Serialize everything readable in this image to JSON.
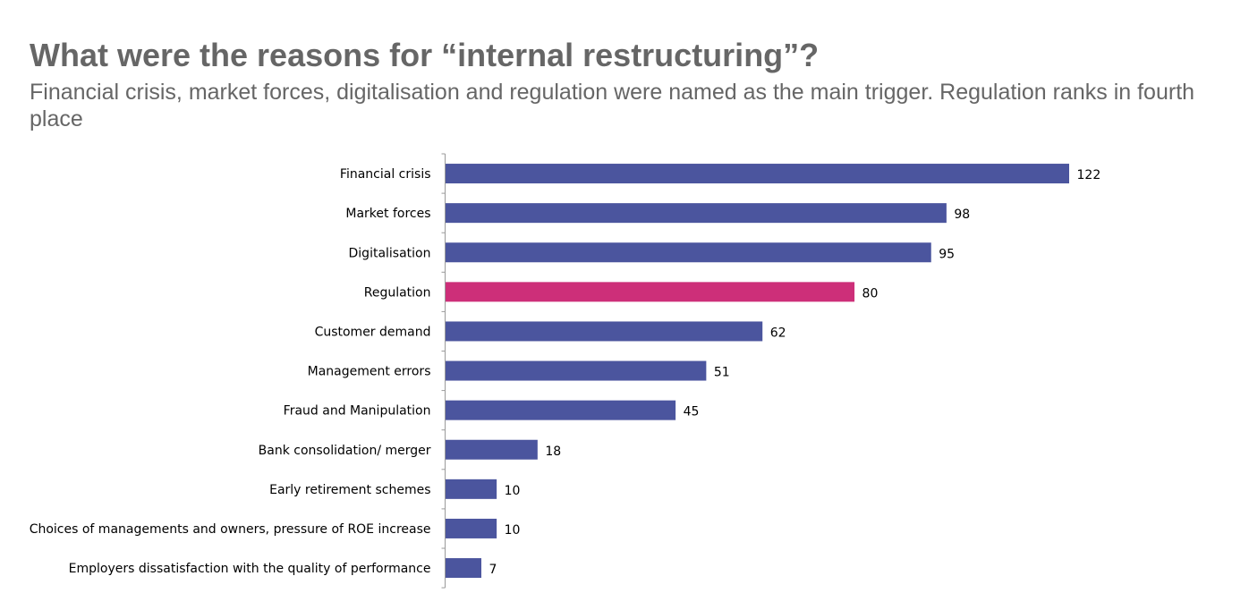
{
  "header": {
    "title": "What were the reasons for “internal restructuring”?",
    "subtitle": "Financial crisis, market forces, digitalisation and regulation were named as the main trigger. Regulation ranks in fourth place"
  },
  "chart_data": {
    "type": "bar",
    "orientation": "horizontal",
    "title": "What were the reasons for “internal restructuring”?",
    "subtitle": "Financial crisis, market forces, digitalisation and regulation were named as the main trigger. Regulation ranks in fourth place",
    "categories": [
      "Financial crisis",
      "Market forces",
      "Digitalisation",
      "Regulation",
      "Customer demand",
      "Management errors",
      "Fraud and Manipulation",
      "Bank consolidation/ merger",
      "Early retirement schemes",
      "Choices of managements and owners, pressure of ROE increase",
      "Employers dissatisfaction with the quality of performance"
    ],
    "values": [
      122,
      98,
      95,
      80,
      62,
      51,
      45,
      18,
      10,
      10,
      7
    ],
    "data_labels": [
      "122",
      "98",
      "95",
      "80",
      "62",
      "51",
      "45",
      "18",
      "10",
      "10",
      "7"
    ],
    "highlight": "Regulation",
    "colors": {
      "default": "#4b559e",
      "highlight": "#cd2f79"
    },
    "xlim": [
      0,
      122
    ],
    "grid": false,
    "legend": "none"
  }
}
